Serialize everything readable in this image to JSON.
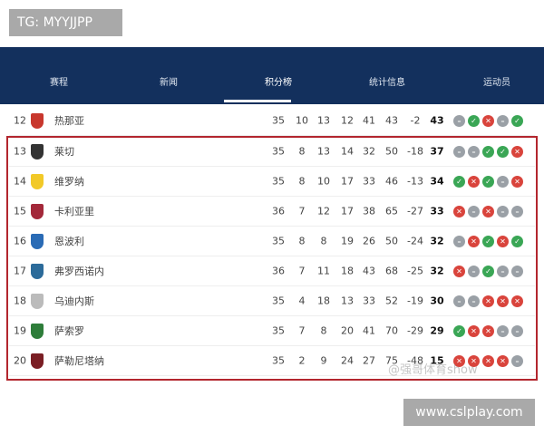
{
  "watermark_top": "TG: MYYJJPP",
  "watermark_bottom": "www.cslplay.com",
  "watermark_image": "@强哥体育show",
  "tabs": [
    {
      "label": "赛程"
    },
    {
      "label": "新闻"
    },
    {
      "label": "积分榜",
      "active": true
    },
    {
      "label": "统计信息"
    },
    {
      "label": "运动员"
    }
  ],
  "colors": {
    "header": "#13305d",
    "highlight_border": "#b3262e",
    "win": "#3aa655",
    "loss": "#d9443c",
    "draw": "#9aa0a6"
  },
  "rows": [
    {
      "pos": "12",
      "team": "热那亚",
      "crest": "#c8372d",
      "vals": [
        "35",
        "10",
        "13",
        "12",
        "41",
        "43",
        "-2"
      ],
      "pts": "43",
      "form": [
        "D",
        "W",
        "L",
        "D",
        "W"
      ]
    },
    {
      "pos": "13",
      "team": "莱切",
      "crest": "#333333",
      "vals": [
        "35",
        "8",
        "13",
        "14",
        "32",
        "50",
        "-18"
      ],
      "pts": "37",
      "form": [
        "D",
        "D",
        "W",
        "W",
        "L"
      ]
    },
    {
      "pos": "14",
      "team": "维罗纳",
      "crest": "#f2c928",
      "vals": [
        "35",
        "8",
        "10",
        "17",
        "33",
        "46",
        "-13"
      ],
      "pts": "34",
      "form": [
        "W",
        "L",
        "W",
        "D",
        "L"
      ]
    },
    {
      "pos": "15",
      "team": "卡利亚里",
      "crest": "#a3283a",
      "vals": [
        "36",
        "7",
        "12",
        "17",
        "38",
        "65",
        "-27"
      ],
      "pts": "33",
      "form": [
        "L",
        "D",
        "L",
        "D",
        "D"
      ]
    },
    {
      "pos": "16",
      "team": "恩波利",
      "crest": "#2a6bb5",
      "vals": [
        "35",
        "8",
        "8",
        "19",
        "26",
        "50",
        "-24"
      ],
      "pts": "32",
      "form": [
        "D",
        "L",
        "W",
        "L",
        "W"
      ]
    },
    {
      "pos": "17",
      "team": "弗罗西诺内",
      "crest": "#2c6b9a",
      "vals": [
        "36",
        "7",
        "11",
        "18",
        "43",
        "68",
        "-25"
      ],
      "pts": "32",
      "form": [
        "L",
        "D",
        "W",
        "D",
        "D"
      ]
    },
    {
      "pos": "18",
      "team": "乌迪内斯",
      "crest": "#bbbbbb",
      "vals": [
        "35",
        "4",
        "18",
        "13",
        "33",
        "52",
        "-19"
      ],
      "pts": "30",
      "form": [
        "D",
        "D",
        "L",
        "L",
        "L"
      ]
    },
    {
      "pos": "19",
      "team": "萨索罗",
      "crest": "#2e7d3a",
      "vals": [
        "35",
        "7",
        "8",
        "20",
        "41",
        "70",
        "-29"
      ],
      "pts": "29",
      "form": [
        "W",
        "L",
        "L",
        "D",
        "D"
      ]
    },
    {
      "pos": "20",
      "team": "萨勒尼塔纳",
      "crest": "#7a1e24",
      "vals": [
        "35",
        "2",
        "9",
        "24",
        "27",
        "75",
        "-48"
      ],
      "pts": "15",
      "form": [
        "L",
        "L",
        "L",
        "L",
        "D"
      ]
    }
  ]
}
